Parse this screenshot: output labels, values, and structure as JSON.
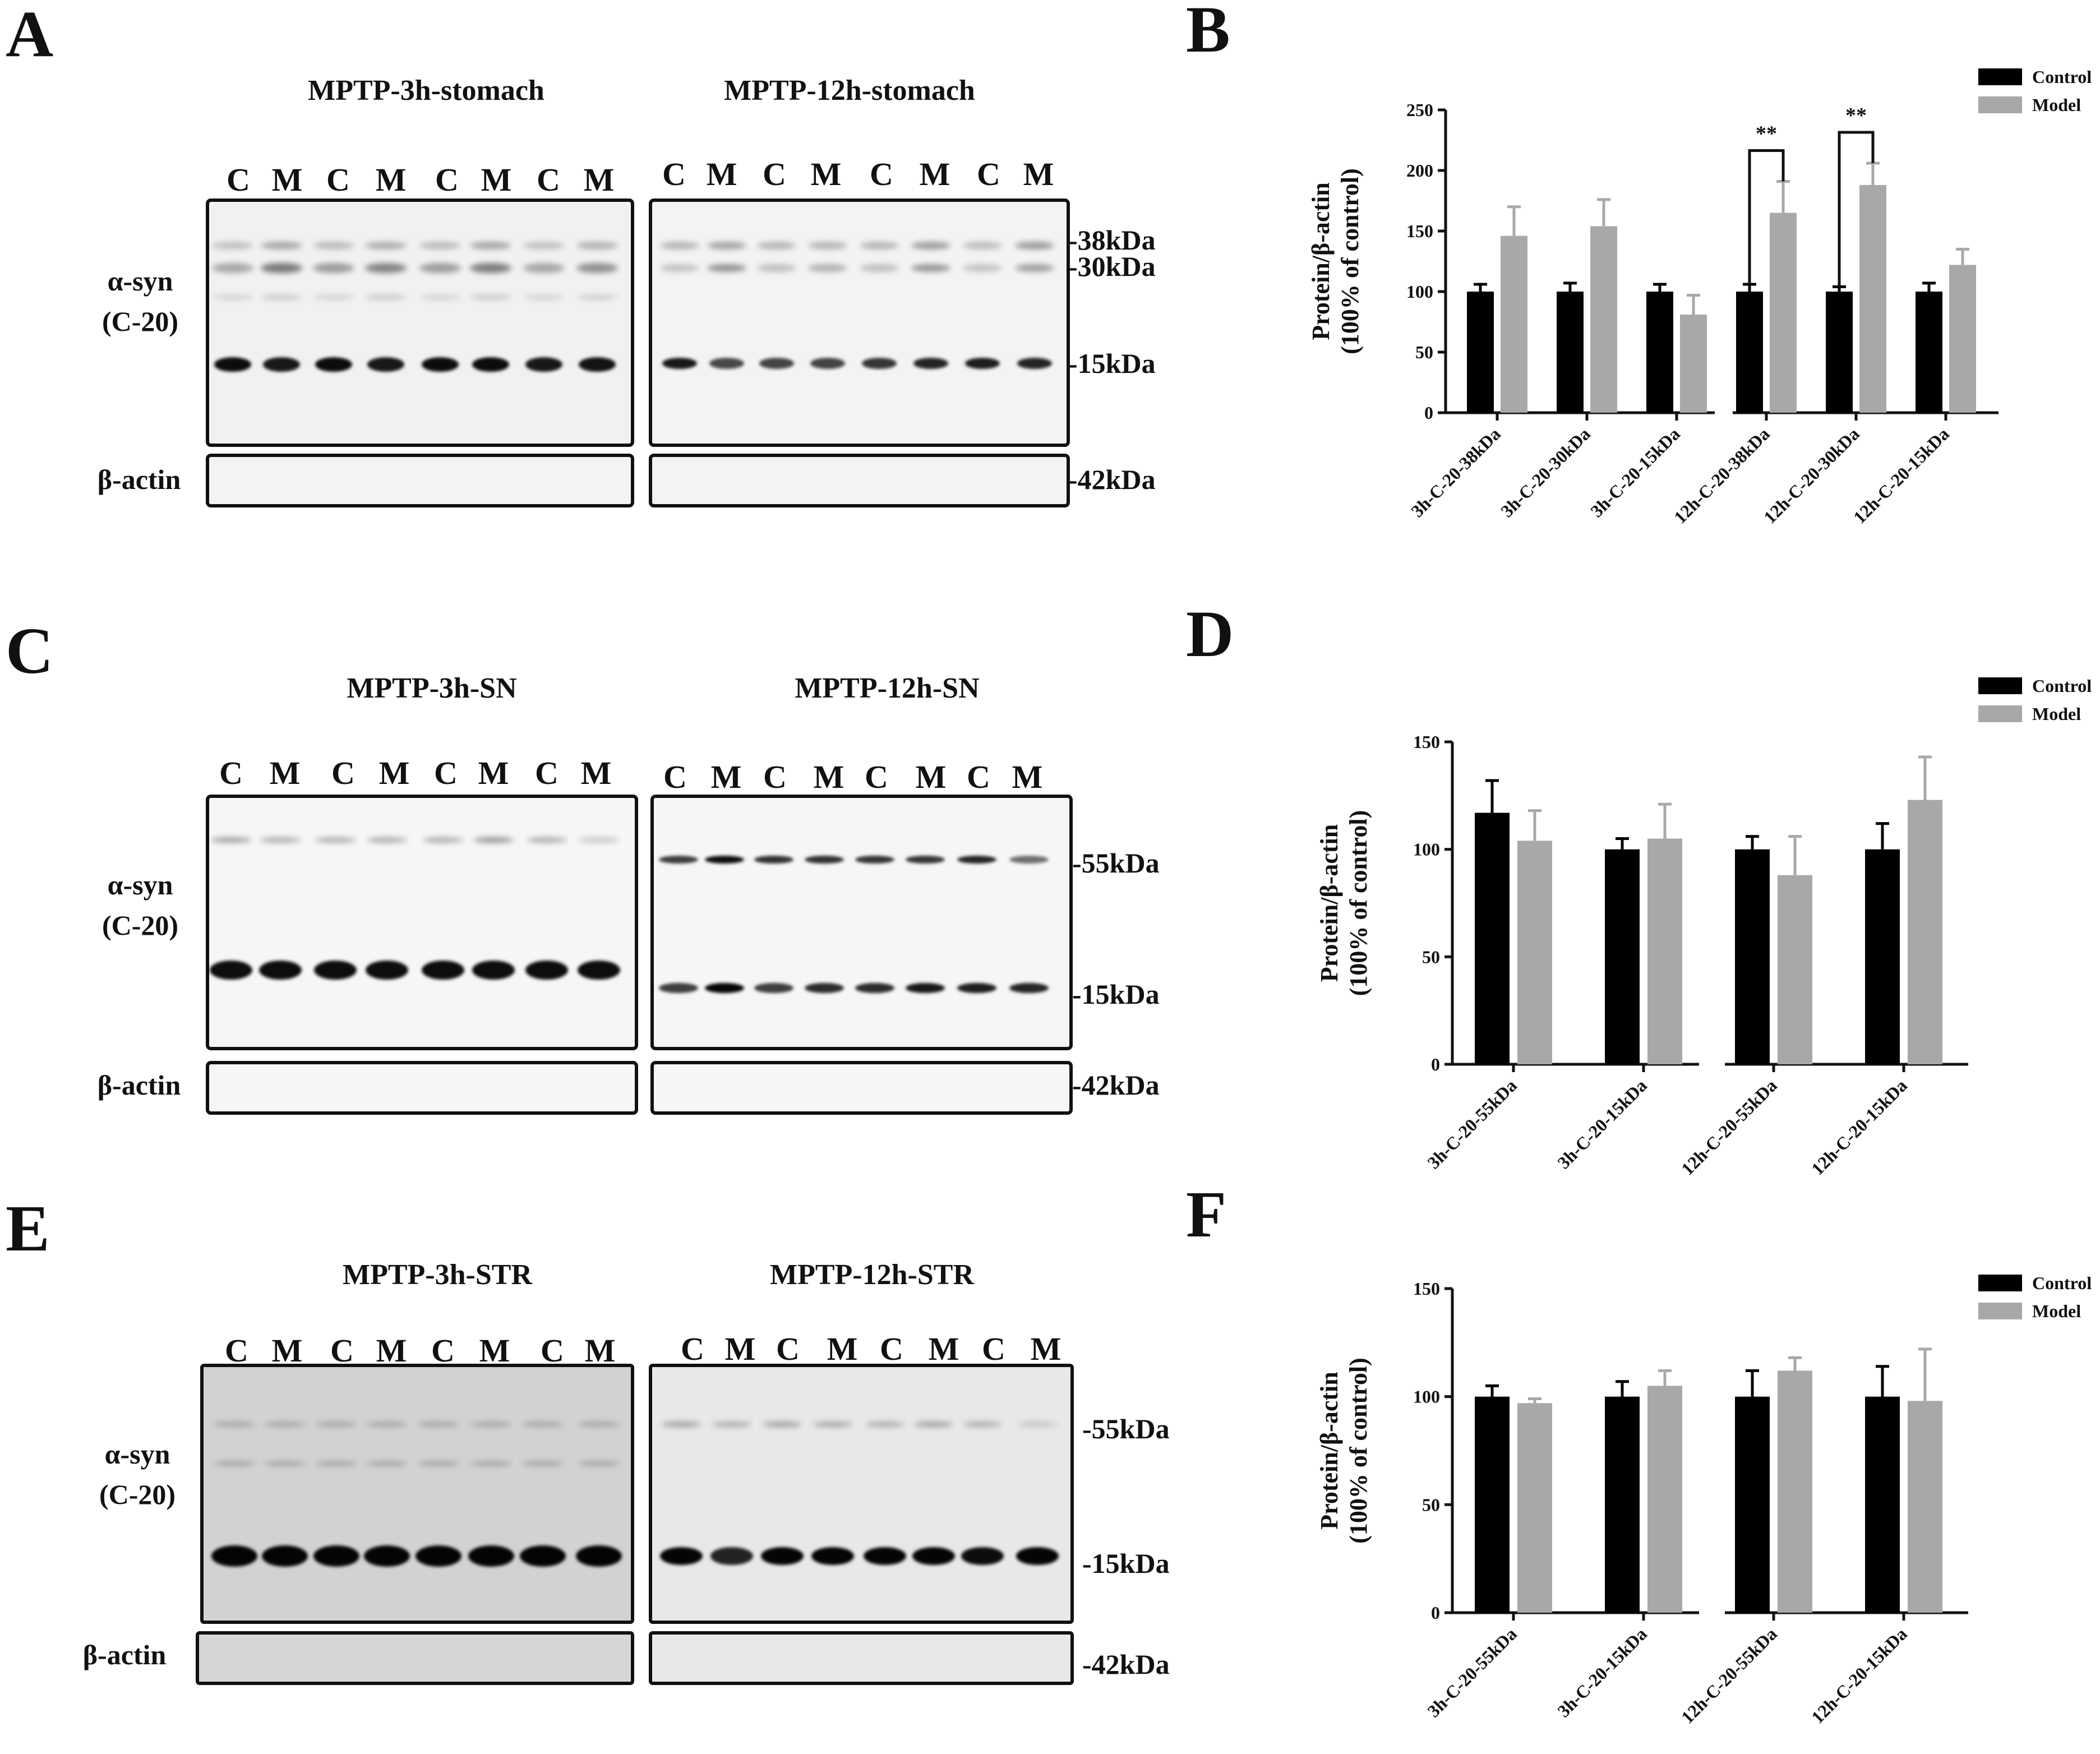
{
  "panel_letters": {
    "A": "A",
    "B": "B",
    "C": "C",
    "D": "D",
    "E": "E",
    "F": "F"
  },
  "blots": [
    {
      "id": "A",
      "titles": [
        "MPTP-3h-stomach",
        "MPTP-12h-stomach"
      ],
      "lanes": [
        "C",
        "M",
        "C",
        "M",
        "C",
        "M",
        "C",
        "M"
      ],
      "antibody": [
        "α-syn",
        "(C-20)"
      ],
      "loading_label": "β-actin",
      "markers": [
        "-38kDa",
        "-30kDa",
        "-15kDa"
      ],
      "actin_marker": "-42kDa"
    },
    {
      "id": "C",
      "titles": [
        "MPTP-3h-SN",
        "MPTP-12h-SN"
      ],
      "lanes": [
        "C",
        "M",
        "C",
        "M",
        "C",
        "M",
        "C",
        "M"
      ],
      "antibody": [
        "α-syn",
        "(C-20)"
      ],
      "loading_label": "β-actin",
      "markers": [
        "-55kDa",
        "-15kDa"
      ],
      "actin_marker": "-42kDa"
    },
    {
      "id": "E",
      "titles": [
        "MPTP-3h-STR",
        "MPTP-12h-STR"
      ],
      "lanes": [
        "C",
        "M",
        "C",
        "M",
        "C",
        "M",
        "C",
        "M"
      ],
      "antibody": [
        "α-syn",
        "(C-20)"
      ],
      "loading_label": "β-actin",
      "markers": [
        "-55kDa",
        "-15kDa"
      ],
      "actin_marker": "-42kDa"
    }
  ],
  "chart_data": [
    {
      "panel": "B",
      "type": "bar",
      "ylabel": [
        "Protein/β-actin",
        "(100% of control)"
      ],
      "ylim": [
        0,
        250
      ],
      "yticks": [
        0,
        50,
        100,
        150,
        200,
        250
      ],
      "legend": {
        "placement": "top-right",
        "entries": [
          "Control",
          "Model"
        ]
      },
      "categories": [
        "3h-C-20-38kDa",
        "3h-C-20-30kDa",
        "3h-C-20-15kDa",
        "12h-C-20-38kDa",
        "12h-C-20-30kDa",
        "12h-C-20-15kDa"
      ],
      "series": [
        {
          "name": "Control",
          "color": "#000000",
          "values": [
            100,
            100,
            100,
            100,
            100,
            100
          ],
          "errors": [
            6,
            7,
            6,
            6,
            4,
            7
          ]
        },
        {
          "name": "Model",
          "color": "#a8a8a8",
          "values": [
            146,
            154,
            81,
            165,
            188,
            122
          ],
          "errors": [
            24,
            22,
            16,
            26,
            18,
            13
          ]
        }
      ],
      "significance": [
        {
          "category": "12h-C-20-38kDa",
          "label": "**"
        },
        {
          "category": "12h-C-20-30kDa",
          "label": "**"
        }
      ]
    },
    {
      "panel": "D",
      "type": "bar",
      "ylabel": [
        "Protein/β-actin",
        "(100% of control)"
      ],
      "ylim": [
        0,
        150
      ],
      "yticks": [
        0,
        50,
        100,
        150
      ],
      "legend": {
        "placement": "top-right",
        "entries": [
          "Control",
          "Model"
        ]
      },
      "categories": [
        "3h-C-20-55kDa",
        "3h-C-20-15kDa",
        "12h-C-20-55kDa",
        "12h-C-20-15kDa"
      ],
      "series": [
        {
          "name": "Control",
          "color": "#000000",
          "values": [
            117,
            100,
            100,
            100
          ],
          "errors": [
            15,
            5,
            6,
            12
          ]
        },
        {
          "name": "Model",
          "color": "#a8a8a8",
          "values": [
            104,
            105,
            88,
            123
          ],
          "errors": [
            14,
            16,
            18,
            20
          ]
        }
      ]
    },
    {
      "panel": "F",
      "type": "bar",
      "ylabel": [
        "Protein/β-actin",
        "(100% of control)"
      ],
      "ylim": [
        0,
        150
      ],
      "yticks": [
        0,
        50,
        100,
        150
      ],
      "legend": {
        "placement": "top-right",
        "entries": [
          "Control",
          "Model"
        ]
      },
      "categories": [
        "3h-C-20-55kDa",
        "3h-C-20-15kDa",
        "12h-C-20-55kDa",
        "12h-C-20-15kDa"
      ],
      "series": [
        {
          "name": "Control",
          "color": "#000000",
          "values": [
            100,
            100,
            100,
            100
          ],
          "errors": [
            5,
            7,
            12,
            14
          ]
        },
        {
          "name": "Model",
          "color": "#a8a8a8",
          "values": [
            97,
            105,
            112,
            98
          ],
          "errors": [
            2,
            7,
            6,
            24
          ]
        }
      ]
    }
  ]
}
